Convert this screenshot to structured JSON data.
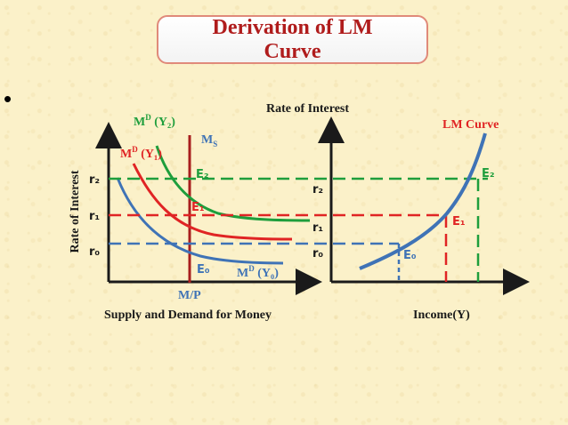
{
  "title": "Derivation of LM\nCurve",
  "bullet": "•",
  "colors": {
    "text_dark": "#1a1a1a",
    "title_red": "#b01c1c",
    "green": "#1e9e3c",
    "red": "#e02424",
    "blue": "#3f73b6",
    "maroon": "#a81e1e",
    "title_border": "#e08a7a"
  },
  "left_panel": {
    "y_axis_title": "Rate of Interest",
    "x_axis_title": "Supply and Demand for Money",
    "supply_label": "M/P",
    "ms_label_main": "M",
    "ms_label_sub": "S",
    "curve_labels": {
      "md_y2_main": "M",
      "md_y2_sup": "D",
      "md_y2_arg": " (Y₂)",
      "md_y1_main": "M",
      "md_y1_sup": "D",
      "md_y1_arg": " (Y₁)",
      "md_y0_main": "M",
      "md_y0_sup": "D",
      "md_y0_arg": " (Y₀)"
    },
    "rate_labels": {
      "r2": "r₂",
      "r1": "r₁",
      "r0": "r₀"
    },
    "equilibria": {
      "e2": "E₂",
      "e1": "E₁",
      "e0": "E₀"
    }
  },
  "right_panel": {
    "y_axis_title": "Rate of Interest",
    "x_axis_title": "Income(Y)",
    "curve_label": "LM Curve",
    "rate_labels": {
      "r2": "r₂",
      "r1": "r₁",
      "r0": "r₀"
    },
    "equilibria": {
      "e2": "E₂",
      "e1": "E₁",
      "e0": "E₀"
    }
  }
}
